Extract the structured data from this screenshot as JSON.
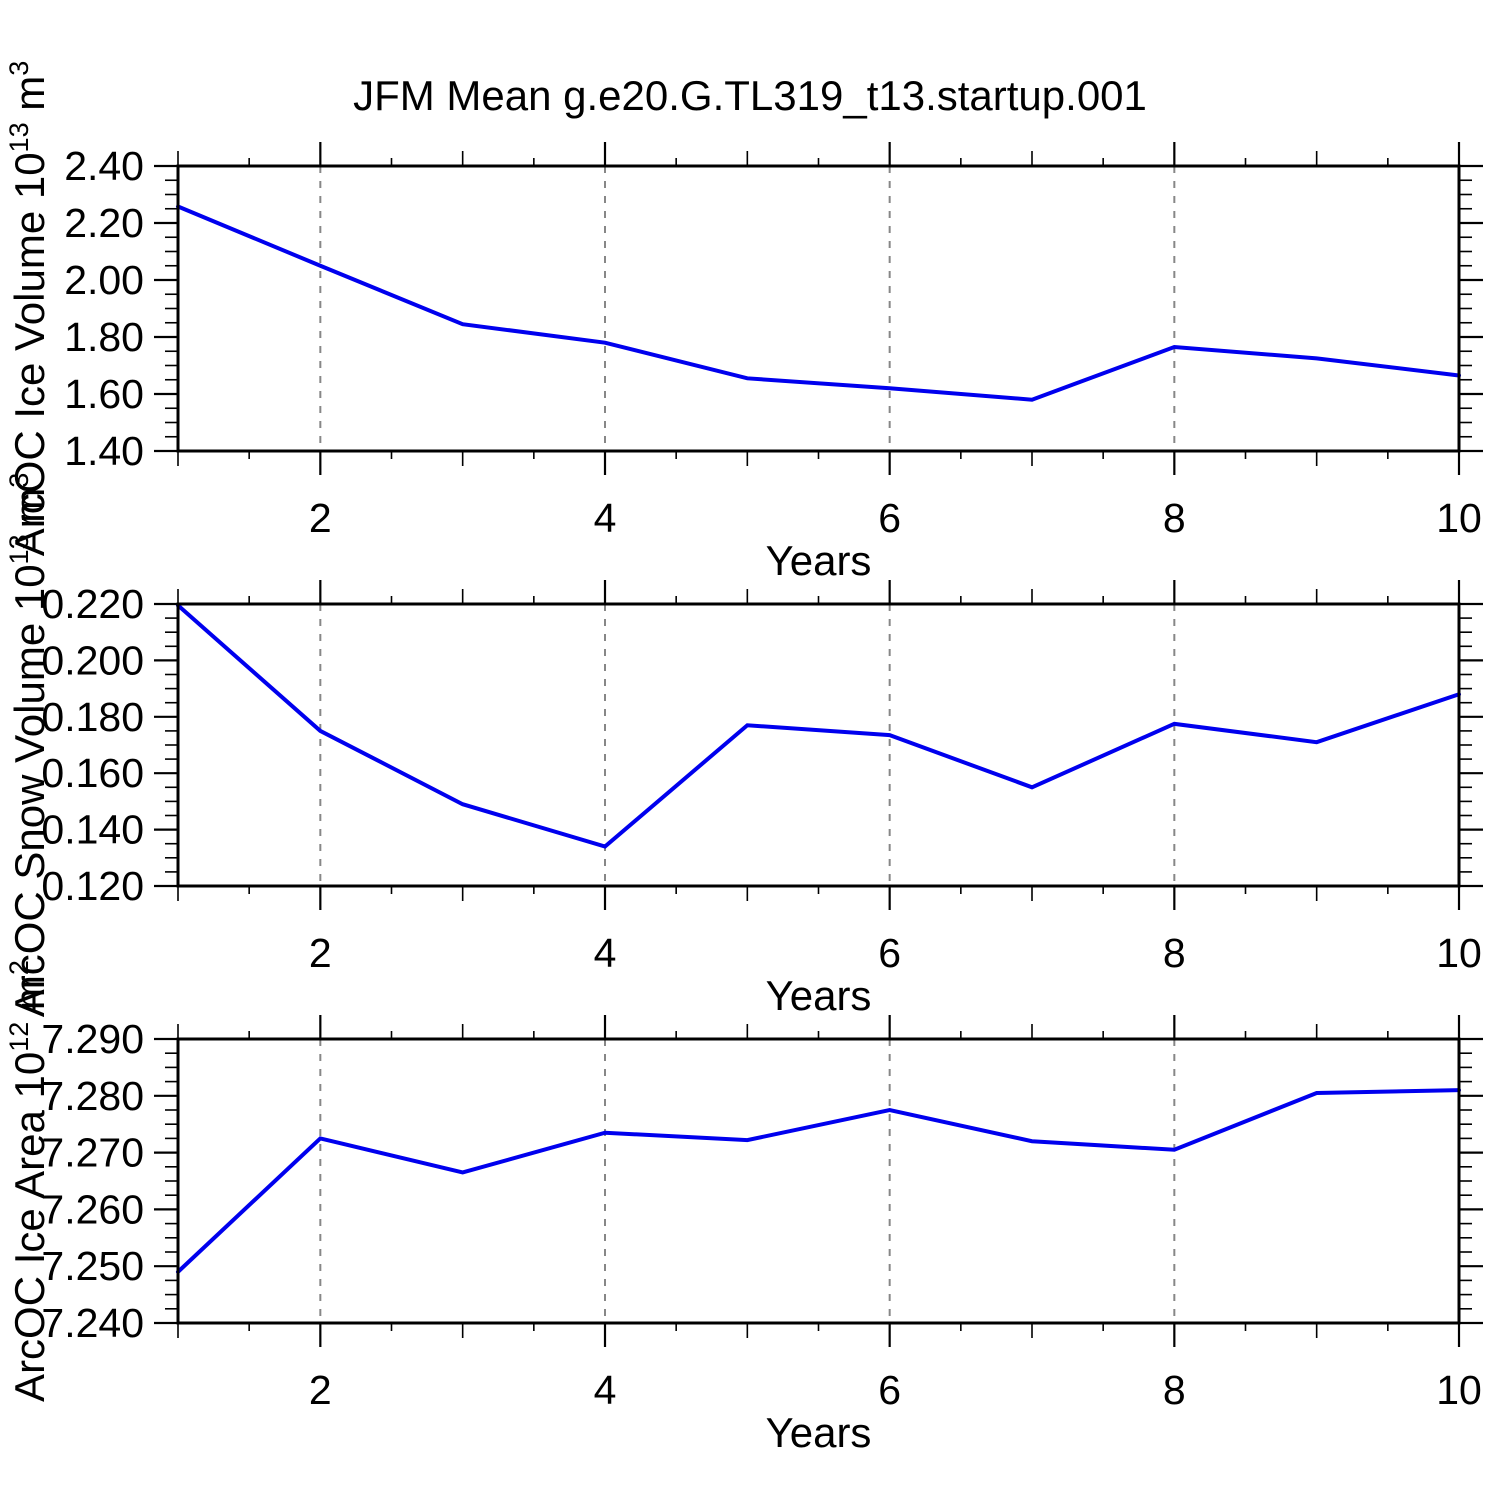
{
  "title": "JFM Mean g.e20.G.TL319_t13.startup.001",
  "colors": {
    "line": "#0000ee",
    "grid": "#878787",
    "axis": "#000000",
    "background": "#ffffff"
  },
  "chart_data": [
    {
      "type": "line",
      "name": "ice-volume",
      "ylabel": "ArcOC Ice Volume 10^13 m^3",
      "ylabel_parts": [
        {
          "t": "ArcOC Ice Volume 10"
        },
        {
          "s": "13"
        },
        {
          "t": " m"
        },
        {
          "s": "3"
        }
      ],
      "xlabel": "Years",
      "x": [
        1,
        2,
        3,
        4,
        5,
        6,
        7,
        8,
        9,
        10
      ],
      "values": [
        2.258,
        2.05,
        1.845,
        1.78,
        1.655,
        1.62,
        1.58,
        1.765,
        1.725,
        1.665
      ],
      "xlim": [
        1,
        10
      ],
      "ylim": [
        1.4,
        2.4
      ],
      "ytick_step": 0.2,
      "ytick_minor_step": 0.05,
      "ytick_labels": [
        "1.40",
        "1.60",
        "1.80",
        "2.00",
        "2.20",
        "2.40"
      ],
      "xtick_labels": [
        "2",
        "4",
        "6",
        "8",
        "10"
      ],
      "xticks": [
        2,
        4,
        6,
        8,
        10
      ],
      "xtick_minor_step": 0.5,
      "grid_x": [
        2,
        4,
        6,
        8
      ],
      "grid_on": true,
      "legend": "none"
    },
    {
      "type": "line",
      "name": "snow-volume",
      "ylabel": "ArcOC Snow Volume 10^13 m^3",
      "ylabel_parts": [
        {
          "t": "ArcOC Snow Volume 10"
        },
        {
          "s": "13"
        },
        {
          "t": " m"
        },
        {
          "s": "3"
        }
      ],
      "xlabel": "Years",
      "x": [
        1,
        2,
        3,
        4,
        5,
        6,
        7,
        8,
        9,
        10
      ],
      "values": [
        0.2195,
        0.175,
        0.149,
        0.134,
        0.177,
        0.1735,
        0.155,
        0.1775,
        0.171,
        0.188
      ],
      "xlim": [
        1,
        10
      ],
      "ylim": [
        0.12,
        0.22
      ],
      "ytick_step": 0.02,
      "ytick_minor_step": 0.005,
      "ytick_labels": [
        "0.120",
        "0.140",
        "0.160",
        "0.180",
        "0.200",
        "0.220"
      ],
      "xtick_labels": [
        "2",
        "4",
        "6",
        "8",
        "10"
      ],
      "xticks": [
        2,
        4,
        6,
        8,
        10
      ],
      "xtick_minor_step": 0.5,
      "grid_x": [
        2,
        4,
        6,
        8
      ],
      "grid_on": true,
      "legend": "none"
    },
    {
      "type": "line",
      "name": "ice-area",
      "ylabel": "ArcOC Ice Area 10^12 m^2",
      "ylabel_parts": [
        {
          "t": "ArcOC Ice Area 10"
        },
        {
          "s": "12"
        },
        {
          "t": " m"
        },
        {
          "s": "2"
        }
      ],
      "xlabel": "Years",
      "x": [
        1,
        2,
        3,
        4,
        5,
        6,
        7,
        8,
        9,
        10
      ],
      "values": [
        7.249,
        7.2725,
        7.2665,
        7.2735,
        7.2722,
        7.2775,
        7.272,
        7.2705,
        7.2805,
        7.281
      ],
      "xlim": [
        1,
        10
      ],
      "ylim": [
        7.24,
        7.29
      ],
      "ytick_step": 0.01,
      "ytick_minor_step": 0.0025,
      "ytick_labels": [
        "7.240",
        "7.250",
        "7.260",
        "7.270",
        "7.280",
        "7.290"
      ],
      "xtick_labels": [
        "2",
        "4",
        "6",
        "8",
        "10"
      ],
      "xticks": [
        2,
        4,
        6,
        8,
        10
      ],
      "xtick_minor_step": 0.5,
      "grid_x": [
        2,
        4,
        6,
        8
      ],
      "grid_on": true,
      "legend": "none"
    }
  ]
}
